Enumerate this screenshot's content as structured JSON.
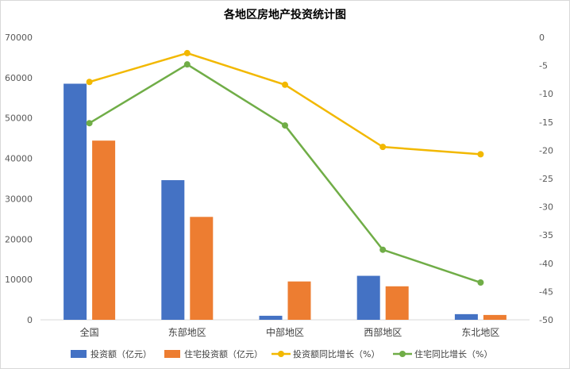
{
  "chart_data": {
    "type": "bar+line",
    "title": "各地区房地产投资统计图",
    "categories": [
      "全国",
      "东部地区",
      "中部地区",
      "西部地区",
      "东北地区"
    ],
    "y_left": {
      "min": 0,
      "max": 70000,
      "step": 10000,
      "ticks": [
        "0",
        "10000",
        "20000",
        "30000",
        "40000",
        "50000",
        "60000",
        "70000"
      ]
    },
    "y_right": {
      "min": -50,
      "max": 0,
      "step": 5,
      "ticks": [
        "0",
        "-5",
        "-10",
        "-15",
        "-20",
        "-25",
        "-30",
        "-35",
        "-40",
        "-45",
        "-50"
      ]
    },
    "series": [
      {
        "name": "投资额（亿元）",
        "type": "bar",
        "axis": "left",
        "color": "#4472C4",
        "values": [
          58500,
          34600,
          1000,
          10900,
          1400
        ]
      },
      {
        "name": "住宅投资额（亿元）",
        "type": "bar",
        "axis": "left",
        "color": "#ED7D31",
        "values": [
          44400,
          25500,
          9500,
          8300,
          1200
        ]
      },
      {
        "name": "投资额同比增长（%）",
        "type": "line",
        "axis": "right",
        "color": "#F2B800",
        "values": [
          -7.9,
          -2.8,
          -8.4,
          -19.4,
          -20.7
        ]
      },
      {
        "name": "住宅同比增长（%）",
        "type": "line",
        "axis": "right",
        "color": "#70AD47",
        "values": [
          -15.2,
          -4.8,
          -15.6,
          -37.6,
          -43.4
        ]
      }
    ],
    "grid": false,
    "legend": "bottom"
  }
}
